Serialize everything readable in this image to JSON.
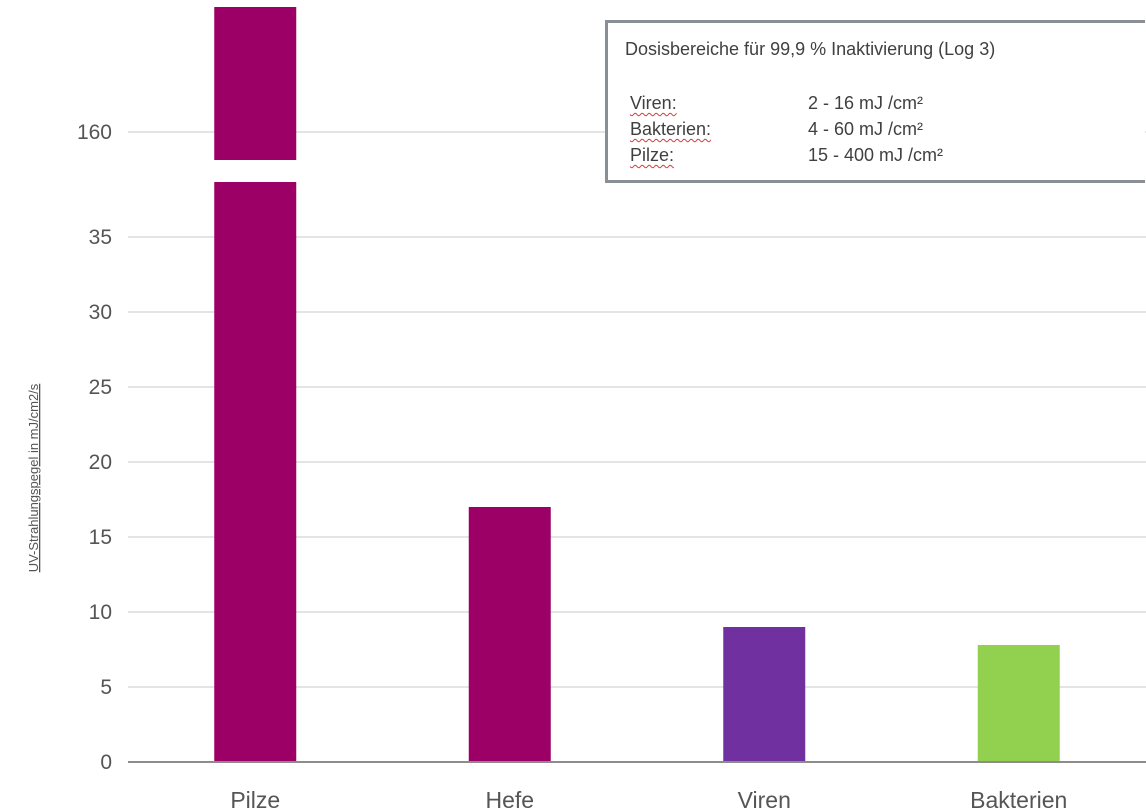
{
  "chart_data": {
    "type": "bar",
    "categories": [
      "Pilze",
      "Hefe",
      "Viren",
      "Bakterien"
    ],
    "values": [
      160,
      17,
      9,
      7.8
    ],
    "ylabel": "UV-Strahlungspegel in mJ/cm2/s",
    "yticks": [
      "0",
      "5",
      "10",
      "15",
      "20",
      "25",
      "30",
      "35",
      "160"
    ],
    "axis_break": true,
    "grid": true,
    "colors": [
      "#9c0066",
      "#9c0066",
      "#7030a0",
      "#92d050"
    ]
  },
  "legend": {
    "title": "Dosisbereiche für 99,9 % Inaktivierung (Log 3)",
    "rows": [
      {
        "name": "Viren:",
        "range": "2 -    16 mJ /cm²"
      },
      {
        "name": "Bakterien:",
        "range": "4 -    60 mJ /cm²"
      },
      {
        "name": "Pilze:",
        "range": "15 - 400 mJ /cm²"
      }
    ]
  }
}
